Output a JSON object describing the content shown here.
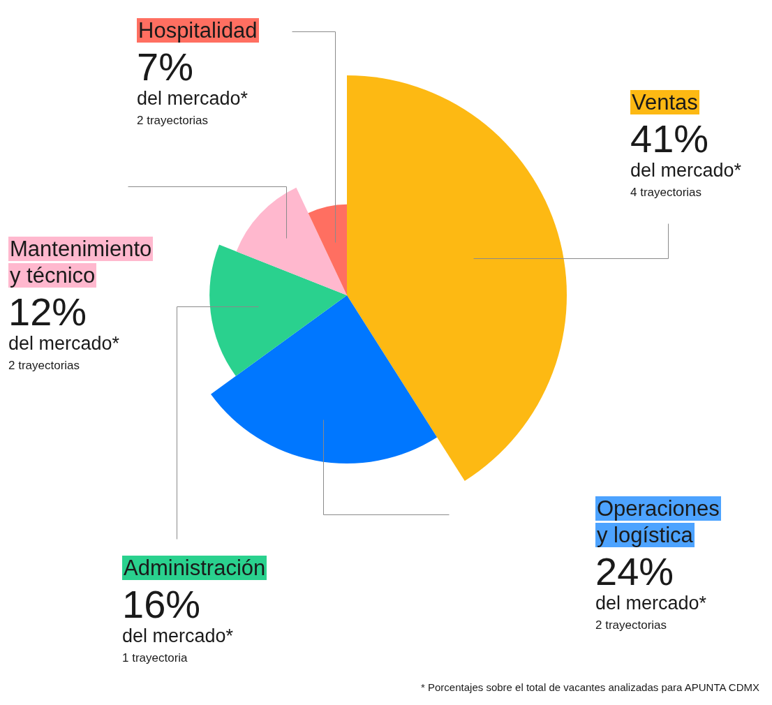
{
  "chart_data": {
    "type": "pie",
    "categories": [
      "Ventas",
      "Operaciones y logística",
      "Administración",
      "Mantenimiento y técnico",
      "Hospitalidad"
    ],
    "values": [
      41,
      24,
      16,
      12,
      7
    ],
    "value_labels": [
      "41%",
      "24%",
      "16%",
      "12%",
      "7%"
    ],
    "colors": [
      "#fdb913",
      "#0077ff",
      "#2ad18e",
      "#ffb8ce",
      "#ff6f61"
    ],
    "data_labels": true,
    "label_note": "del mercado*",
    "trajectories": [
      "4 trayectorias",
      "2 trayectorias",
      "1 trayectoria",
      "2 trayectorias",
      "2 trayectorias"
    ],
    "footnote": "* Porcentajes sobre el total de vacantes analizadas para APUNTA CDMX"
  }
}
